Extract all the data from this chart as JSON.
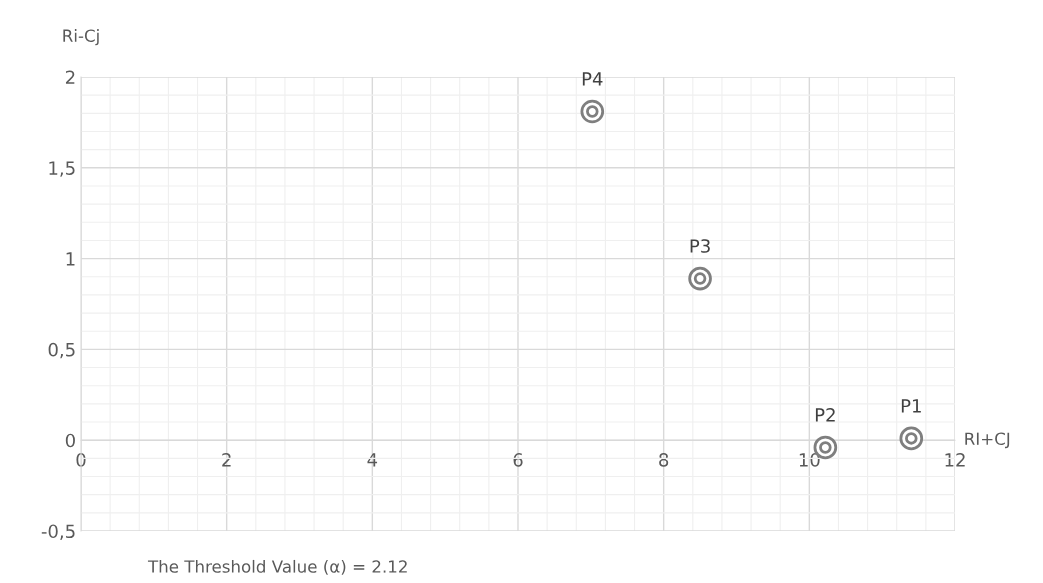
{
  "chart_data": {
    "type": "scatter",
    "xlabel": "RI+CJ",
    "ylabel": "Ri-Cj",
    "x": [
      11.4,
      10.22,
      8.5,
      7.02
    ],
    "series": [
      {
        "color": "#7f7f7f",
        "values": [
          0.01,
          -0.04,
          0.89,
          1.81
        ]
      }
    ],
    "xlim": [
      0,
      12
    ],
    "ylim": [
      -0.5,
      2
    ],
    "xticks": [
      0,
      2,
      4,
      6,
      8,
      10,
      12
    ],
    "yticks": [
      {
        "value": -0.5,
        "label": "-0,5"
      },
      0,
      {
        "value": 0.5,
        "label": "0,5"
      },
      1,
      {
        "value": 1.5,
        "label": "1,5"
      },
      2
    ],
    "grid": true,
    "marker": "circle",
    "annotations": [
      {
        "text": "P1",
        "x": 11.4,
        "y": 0.01
      },
      {
        "text": "P2",
        "x": 10.22,
        "y": -0.04
      },
      {
        "text": "P3",
        "x": 8.5,
        "y": 0.89
      },
      {
        "text": "P4",
        "x": 7.02,
        "y": 1.81
      },
      "The Threshold Value (α) = 2.12"
    ]
  }
}
